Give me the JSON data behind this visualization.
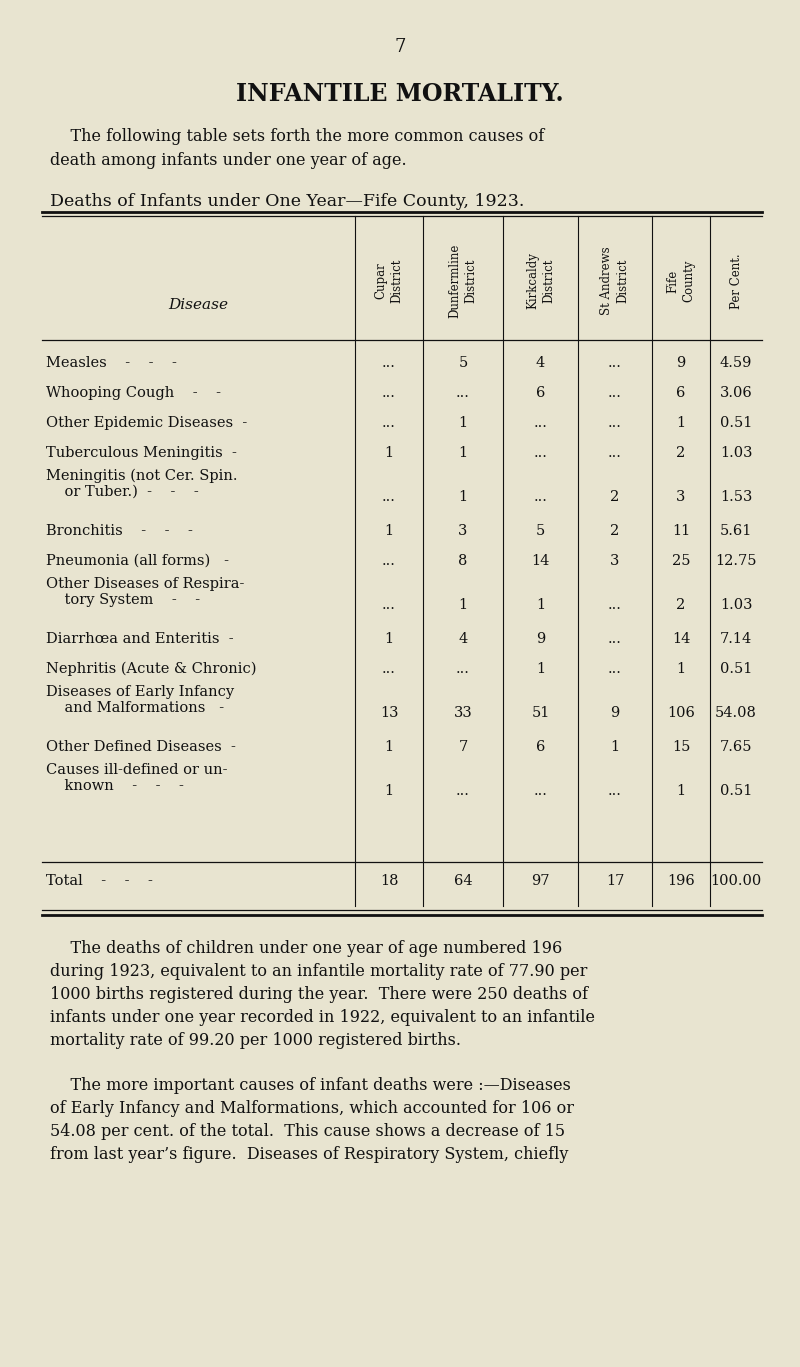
{
  "bg_color": "#e8e4d0",
  "page_number": "7",
  "title": "INFANTILE MORTALITY.",
  "intro_line1": "    The following table sets forth the more common causes of",
  "intro_line2": "death among infants under one year of age.",
  "table_title": "Deaths of Infants under One Year—Fife County, 1923.",
  "rows": [
    {
      "disease1": "Measles    -    -    -",
      "disease2": "",
      "cupar": "...",
      "dunfermline": "5",
      "kirkcaldy": "4",
      "st_andrews": "...",
      "fife": "9",
      "pct": "4.59"
    },
    {
      "disease1": "Whooping Cough    -    -",
      "disease2": "",
      "cupar": "...",
      "dunfermline": "...",
      "kirkcaldy": "6",
      "st_andrews": "...",
      "fife": "6",
      "pct": "3.06"
    },
    {
      "disease1": "Other Epidemic Diseases  -",
      "disease2": "",
      "cupar": "...",
      "dunfermline": "1",
      "kirkcaldy": "...",
      "st_andrews": "...",
      "fife": "1",
      "pct": "0.51"
    },
    {
      "disease1": "Tuberculous Meningitis  -",
      "disease2": "",
      "cupar": "1",
      "dunfermline": "1",
      "kirkcaldy": "...",
      "st_andrews": "...",
      "fife": "2",
      "pct": "1.03"
    },
    {
      "disease1": "Meningitis (not Cer. Spin.",
      "disease2": "    or Tuber.)  -    -    -",
      "cupar": "...",
      "dunfermline": "1",
      "kirkcaldy": "...",
      "st_andrews": "2",
      "fife": "3",
      "pct": "1.53"
    },
    {
      "disease1": "Bronchitis    -    -    -",
      "disease2": "",
      "cupar": "1",
      "dunfermline": "3",
      "kirkcaldy": "5",
      "st_andrews": "2",
      "fife": "11",
      "pct": "5.61"
    },
    {
      "disease1": "Pneumonia (all forms)   -",
      "disease2": "",
      "cupar": "...",
      "dunfermline": "8",
      "kirkcaldy": "14",
      "st_andrews": "3",
      "fife": "25",
      "pct": "12.75"
    },
    {
      "disease1": "Other Diseases of Respira-",
      "disease2": "    tory System    -    -",
      "cupar": "...",
      "dunfermline": "1",
      "kirkcaldy": "1",
      "st_andrews": "...",
      "fife": "2",
      "pct": "1.03"
    },
    {
      "disease1": "Diarrhœa and Enteritis  -",
      "disease2": "",
      "cupar": "1",
      "dunfermline": "4",
      "kirkcaldy": "9",
      "st_andrews": "...",
      "fife": "14",
      "pct": "7.14"
    },
    {
      "disease1": "Nephritis (Acute & Chronic)",
      "disease2": "",
      "cupar": "...",
      "dunfermline": "...",
      "kirkcaldy": "1",
      "st_andrews": "...",
      "fife": "1",
      "pct": "0.51"
    },
    {
      "disease1": "Diseases of Early Infancy",
      "disease2": "    and Malformations   -",
      "cupar": "13",
      "dunfermline": "33",
      "kirkcaldy": "51",
      "st_andrews": "9",
      "fife": "106",
      "pct": "54.08"
    },
    {
      "disease1": "Other Defined Diseases  -",
      "disease2": "",
      "cupar": "1",
      "dunfermline": "7",
      "kirkcaldy": "6",
      "st_andrews": "1",
      "fife": "15",
      "pct": "7.65"
    },
    {
      "disease1": "Causes ill-defined or un-",
      "disease2": "    known    -    -    -",
      "cupar": "1",
      "dunfermline": "...",
      "kirkcaldy": "...",
      "st_andrews": "...",
      "fife": "1",
      "pct": "0.51"
    }
  ],
  "total_row": {
    "cupar": "18",
    "dunfermline": "64",
    "kirkcaldy": "97",
    "st_andrews": "17",
    "fife": "196",
    "pct": "100.00"
  },
  "p1_lines": [
    "    The deaths of children under one year of age numbered 196",
    "during 1923, equivalent to an infantile mortality rate of 77.90 per",
    "1000 births registered during the year.  There were 250 deaths of",
    "infants under one year recorded in 1922, equivalent to an infantile",
    "mortality rate of 99.20 per 1000 registered births."
  ],
  "p2_lines": [
    "    The more important causes of infant deaths were :—Diseases",
    "of Early Infancy and Malformations, which accounted for 106 or",
    "54.08 per cent. of the total.  This cause shows a decrease of 15",
    "from last year’s figure.  Diseases of Respiratory System, chiefly"
  ]
}
